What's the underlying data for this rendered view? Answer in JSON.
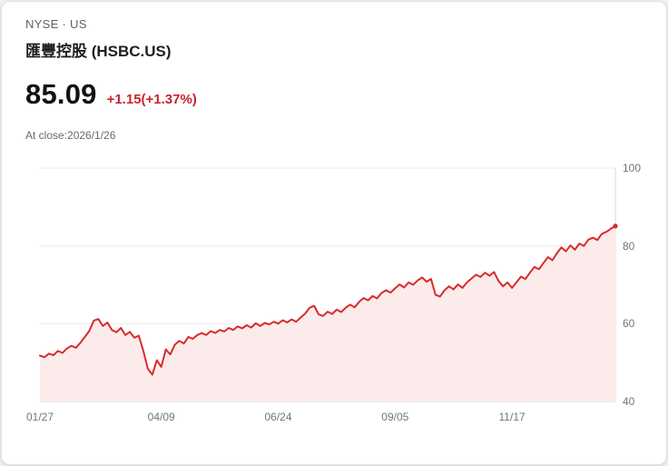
{
  "header": {
    "exchange": "NYSE · US",
    "title": "匯豐控股 (HSBC.US)",
    "price": "85.09",
    "change": "+1.15(+1.37%)",
    "as_of": "At close:2026/1/26"
  },
  "colors": {
    "line": "#d92b2b",
    "area_fill": "#fcebeb",
    "change_text": "#c9232e",
    "grid": "#ececec",
    "axis_border": "#d9d9d9",
    "tick_text": "#70757a"
  },
  "chart_data": {
    "type": "area",
    "title": "HSBC.US one-year price chart",
    "xlabel": "",
    "ylabel": "",
    "ylim": [
      40,
      100
    ],
    "y_ticks": [
      100,
      80,
      60,
      40
    ],
    "x_ticks": [
      "01/27",
      "04/09",
      "06/24",
      "09/05",
      "11/17"
    ],
    "x_tick_indices": [
      0,
      27,
      53,
      79,
      105
    ],
    "grid": "horizontal",
    "legend": "none",
    "last_price": 85.09,
    "values": [
      51.8,
      51.4,
      52.3,
      51.9,
      53.0,
      52.5,
      53.6,
      54.3,
      53.8,
      55.1,
      56.6,
      58.2,
      60.8,
      61.2,
      59.4,
      60.3,
      58.4,
      57.8,
      58.9,
      57.1,
      57.9,
      56.4,
      56.9,
      53.0,
      48.4,
      46.9,
      50.6,
      48.9,
      53.4,
      52.1,
      54.6,
      55.6,
      54.9,
      56.6,
      56.1,
      57.1,
      57.6,
      57.1,
      58.1,
      57.6,
      58.4,
      58.0,
      58.9,
      58.4,
      59.3,
      58.8,
      59.6,
      59.0,
      60.1,
      59.4,
      60.2,
      59.8,
      60.5,
      60.0,
      60.9,
      60.3,
      61.1,
      60.5,
      61.6,
      62.6,
      64.1,
      64.6,
      62.4,
      62.0,
      63.1,
      62.5,
      63.6,
      63.0,
      64.1,
      64.9,
      64.2,
      65.6,
      66.6,
      66.0,
      67.1,
      66.5,
      67.9,
      68.6,
      68.0,
      69.1,
      70.1,
      69.3,
      70.6,
      70.0,
      71.1,
      71.9,
      70.8,
      71.5,
      67.4,
      67.0,
      68.6,
      69.6,
      68.8,
      70.1,
      69.2,
      70.6,
      71.6,
      72.6,
      72.0,
      73.1,
      72.3,
      73.3,
      71.0,
      69.6,
      70.6,
      69.2,
      70.6,
      72.1,
      71.5,
      73.1,
      74.6,
      74.0,
      75.6,
      77.1,
      76.3,
      78.1,
      79.6,
      78.6,
      80.1,
      79.0,
      80.6,
      80.0,
      81.6,
      82.1,
      81.5,
      83.1,
      83.6,
      84.4,
      85.09
    ]
  }
}
